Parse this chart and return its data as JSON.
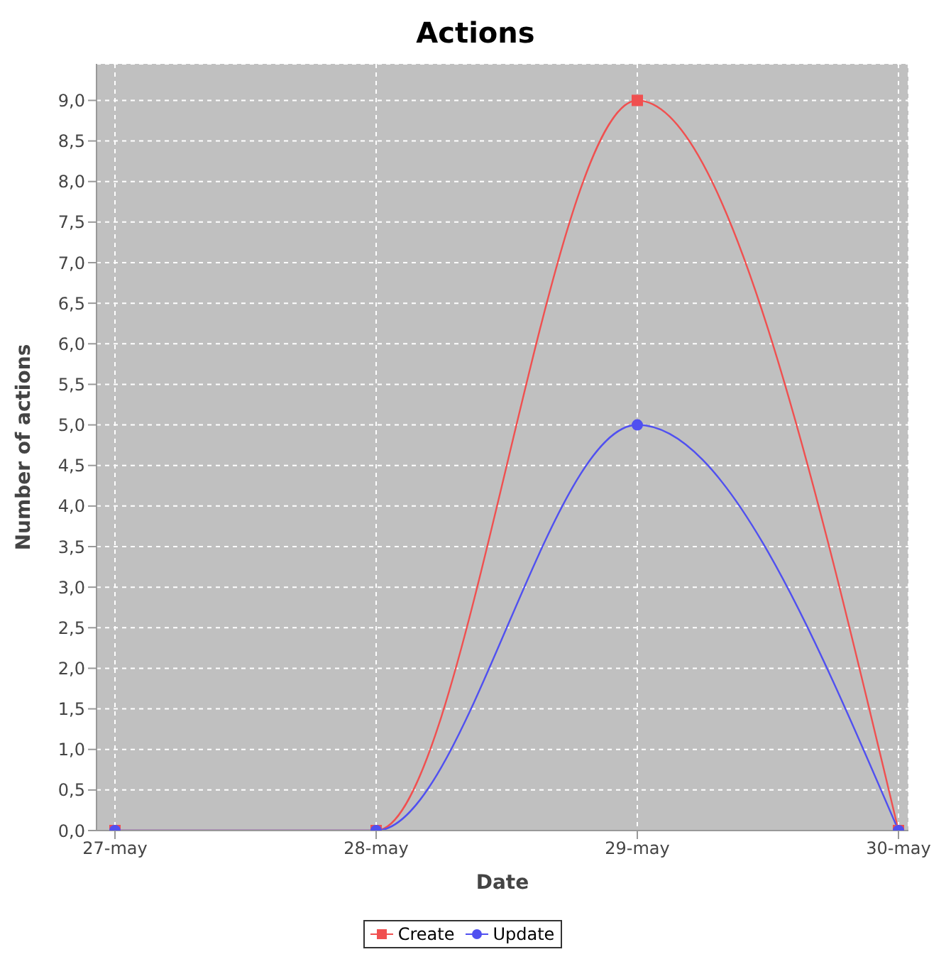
{
  "chart_data": {
    "type": "line",
    "title": "Actions",
    "xlabel": "Date",
    "ylabel": "Number of actions",
    "categories": [
      "27-may",
      "28-may",
      "29-may",
      "30-may"
    ],
    "series": [
      {
        "name": "Create",
        "color": "#f05050",
        "values": [
          0,
          0,
          9,
          0
        ],
        "marker": "square"
      },
      {
        "name": "Update",
        "color": "#5050f0",
        "values": [
          0,
          0,
          5,
          0
        ],
        "marker": "circle"
      }
    ],
    "ylim": [
      0,
      9.45
    ],
    "yticks": [
      {
        "value": 0,
        "label": "0,0"
      },
      {
        "value": 0.5,
        "label": "0,5"
      },
      {
        "value": 1,
        "label": "1,0"
      },
      {
        "value": 1.5,
        "label": "1,5"
      },
      {
        "value": 2,
        "label": "2,0"
      },
      {
        "value": 2.5,
        "label": "2,5"
      },
      {
        "value": 3,
        "label": "3,0"
      },
      {
        "value": 3.5,
        "label": "3,5"
      },
      {
        "value": 4,
        "label": "4,0"
      },
      {
        "value": 4.5,
        "label": "4,5"
      },
      {
        "value": 5,
        "label": "5,0"
      },
      {
        "value": 5.5,
        "label": "5,5"
      },
      {
        "value": 6,
        "label": "6,0"
      },
      {
        "value": 6.5,
        "label": "6,5"
      },
      {
        "value": 7,
        "label": "7,0"
      },
      {
        "value": 7.5,
        "label": "7,5"
      },
      {
        "value": 8,
        "label": "8,0"
      },
      {
        "value": 8.5,
        "label": "8,5"
      },
      {
        "value": 9,
        "label": "9,0"
      }
    ],
    "grid": true,
    "legend": "bottom",
    "line_style": "solid"
  }
}
